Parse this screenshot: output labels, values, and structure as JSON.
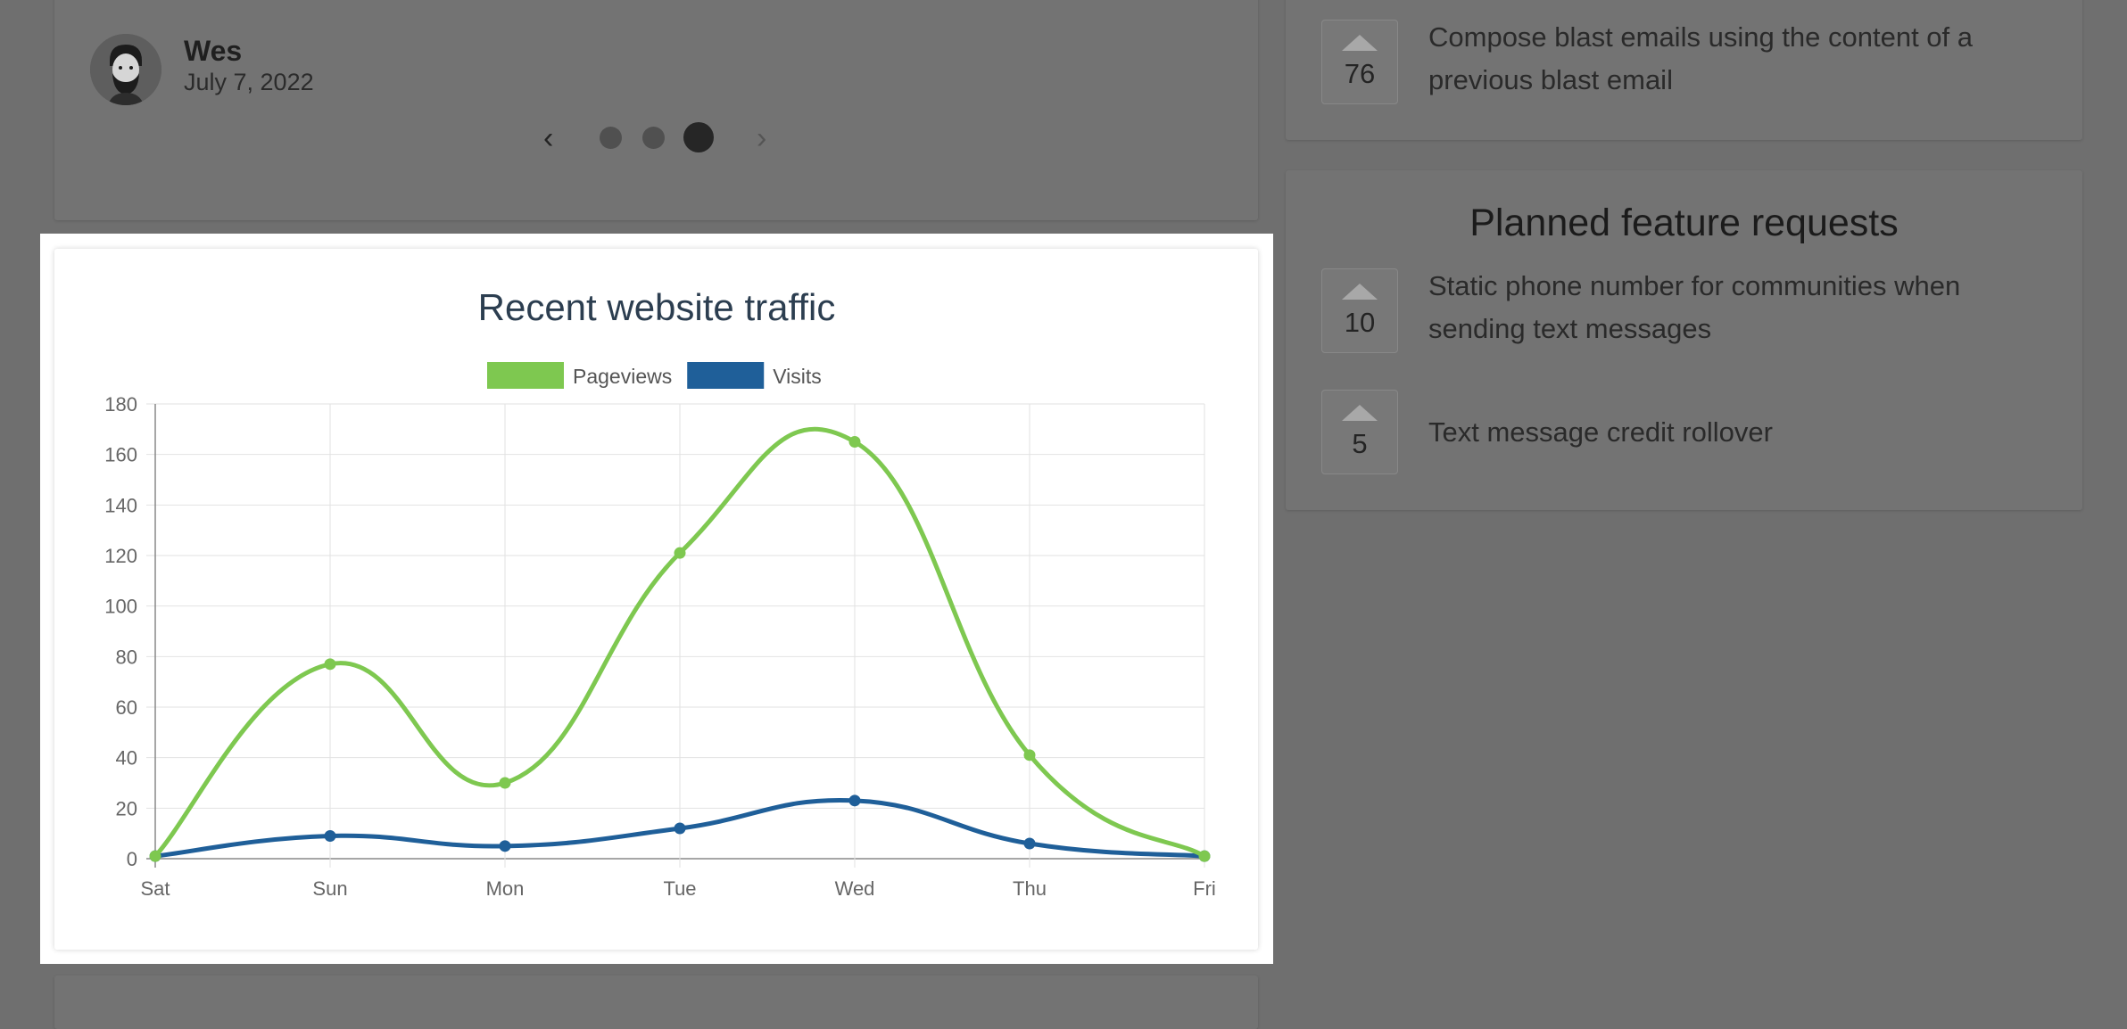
{
  "testimonial": {
    "author": "Wes",
    "date": "July 7, 2022",
    "prev_symbol": "‹",
    "next_symbol": "›",
    "dots": 3,
    "active_dot": 3
  },
  "features_top": {
    "items": [
      {
        "votes": "76",
        "text": "Compose blast emails using the content of a previous blast email"
      }
    ]
  },
  "planned": {
    "title": "Planned feature requests",
    "items": [
      {
        "votes": "10",
        "text": "Static phone number for communities when sending text messages"
      },
      {
        "votes": "5",
        "text": "Text message credit rollover"
      }
    ]
  },
  "chart_data": {
    "type": "line",
    "title": "Recent website traffic",
    "categories": [
      "Sat",
      "Sun",
      "Mon",
      "Tue",
      "Wed",
      "Thu",
      "Fri"
    ],
    "series": [
      {
        "name": "Pageviews",
        "color": "#7ec850",
        "values": [
          1,
          77,
          30,
          121,
          165,
          41,
          1
        ]
      },
      {
        "name": "Visits",
        "color": "#1f5f99",
        "values": [
          1,
          9,
          5,
          12,
          23,
          6,
          1
        ]
      }
    ],
    "ylim": [
      0,
      180
    ],
    "yticks": [
      0,
      20,
      40,
      60,
      80,
      100,
      120,
      140,
      160,
      180
    ],
    "grid": true,
    "legend": "top",
    "smooth": true
  }
}
